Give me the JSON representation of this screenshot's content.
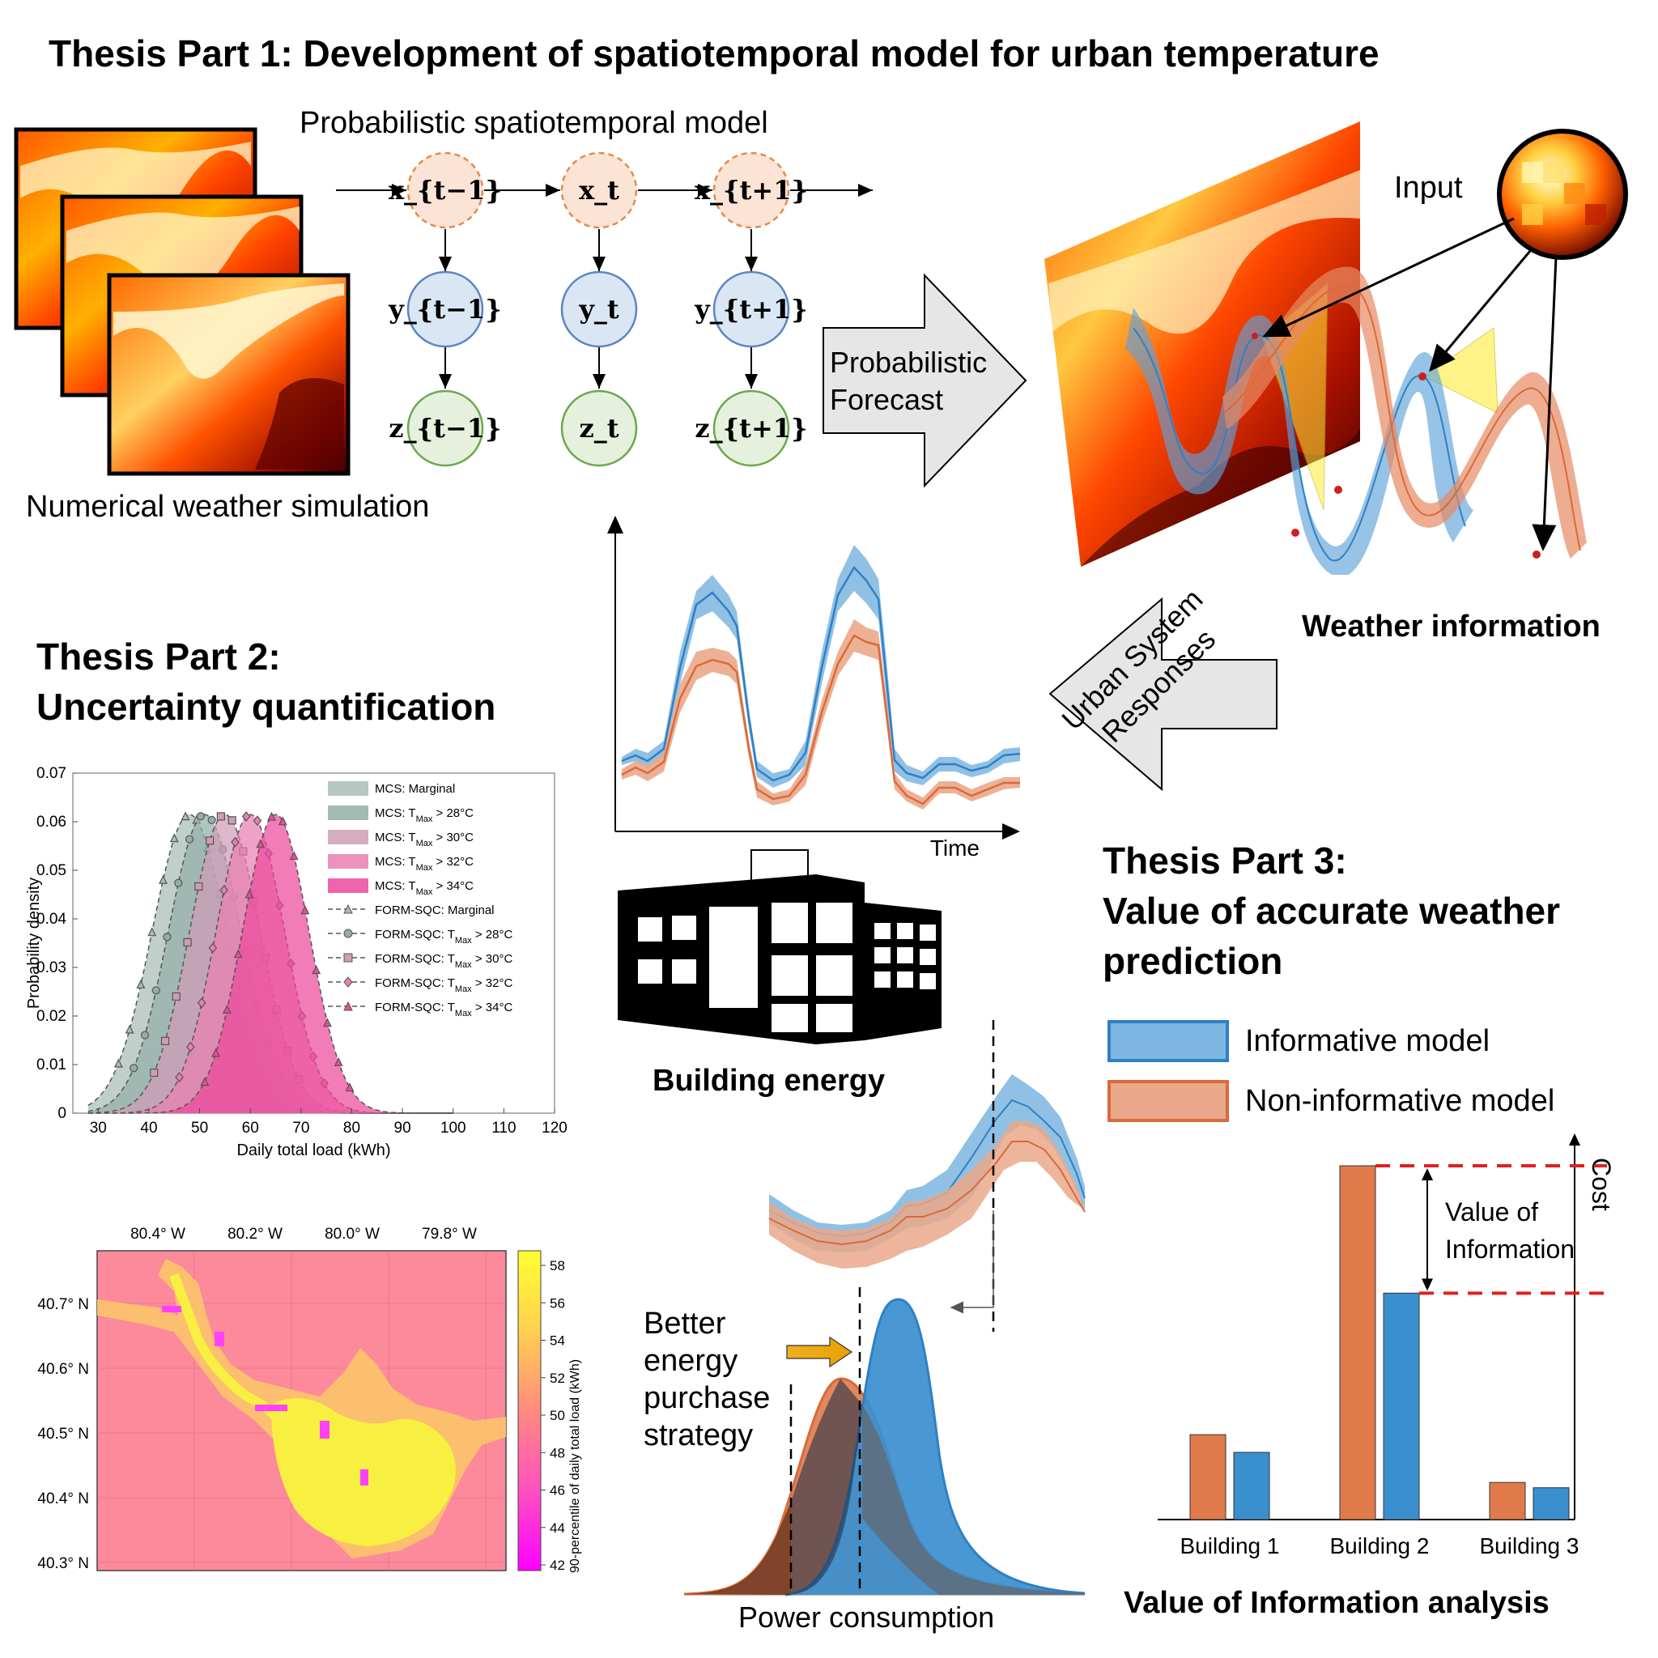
{
  "part1": {
    "title": "Thesis Part 1: Development of spatiotemporal model for urban temperature",
    "nws_label": "Numerical weather simulation",
    "model_label": "Probabilistic spatiotemporal model",
    "nodes": {
      "x": [
        "x_{t−1}",
        "x_t",
        "x_{t+1}"
      ],
      "y": [
        "y_{t−1}",
        "y_t",
        "y_{t+1}"
      ],
      "z": [
        "z_{t−1}",
        "z_t",
        "z_{t+1}"
      ]
    },
    "forecast_arrow": [
      "Probabilistic",
      "Forecast"
    ],
    "input_label": "Input",
    "weather_label": "Weather information",
    "responses_arrow": [
      "Urban System",
      "Responses"
    ]
  },
  "time_chart": {
    "xlabel": "Time"
  },
  "building_label": "Building energy",
  "part2": {
    "title_line1": "Thesis Part 2:",
    "title_line2": "Uncertainty quantification",
    "pdf_chart": {
      "type": "area",
      "xlabel": "Daily total load (kWh)",
      "ylabel": "Probability density",
      "xlim": [
        25,
        120
      ],
      "ylim": [
        0,
        0.07
      ],
      "xticks": [
        "30",
        "40",
        "50",
        "60",
        "70",
        "80",
        "90",
        "100",
        "110",
        "120"
      ],
      "yticks": [
        "0",
        "0.01",
        "0.02",
        "0.03",
        "0.04",
        "0.05",
        "0.06",
        "0.07"
      ],
      "series": [
        {
          "name": "MCS: Marginal",
          "mean": 48,
          "sd": 7.4,
          "color": "#a8bdb4"
        },
        {
          "name": "MCS: T_Max > 28°C",
          "mean": 51,
          "sd": 7.2,
          "color": "#93aea7"
        },
        {
          "name": "MCS: T_Max > 30°C",
          "mean": 55,
          "sd": 7.0,
          "color": "#cf9db5"
        },
        {
          "name": "MCS: T_Max > 32°C",
          "mean": 60,
          "sd": 6.8,
          "color": "#e97fb0"
        },
        {
          "name": "MCS: T_Max > 34°C",
          "mean": 65,
          "sd": 6.6,
          "color": "#ec4a9c"
        }
      ],
      "form_legend": [
        "FORM-SQC: Marginal",
        "FORM-SQC: T_Max > 28°C",
        "FORM-SQC: T_Max > 30°C",
        "FORM-SQC: T_Max > 32°C",
        "FORM-SQC: T_Max > 34°C"
      ]
    },
    "map": {
      "lon_ticks": [
        "80.4° W",
        "80.2° W",
        "80.0° W",
        "79.8° W"
      ],
      "lat_ticks": [
        "40.7° N",
        "40.6° N",
        "40.5° N",
        "40.4° N",
        "40.3° N"
      ],
      "colorbar_label": "90-percentile of daily total load (kWh)",
      "colorbar_ticks": [
        "58",
        "56",
        "54",
        "52",
        "50",
        "48",
        "46",
        "44",
        "42"
      ]
    }
  },
  "part3": {
    "title_line1": "Thesis Part 3:",
    "title_line2": "Value of accurate weather",
    "title_line3": "prediction",
    "legend": [
      {
        "label": "Informative model",
        "fill": "#7db6e0",
        "stroke": "#2f80c4"
      },
      {
        "label": "Non-informative model",
        "fill": "#eaa88a",
        "stroke": "#d96a3b"
      }
    ],
    "better_strategy": [
      "Better",
      "energy",
      "purchase",
      "strategy"
    ],
    "power_label": "Power consumption",
    "voi_chart": {
      "type": "bar",
      "categories": [
        "Building 1",
        "Building 2",
        "Building 3"
      ],
      "series": [
        {
          "name": "Non-informative model",
          "values": [
            0.24,
            1.0,
            0.105
          ],
          "color": "#e07a4a"
        },
        {
          "name": "Informative model",
          "values": [
            0.19,
            0.64,
            0.09
          ],
          "color": "#3a8fcf"
        }
      ],
      "ylabel": "Cost",
      "annotation": [
        "Value of",
        "Information"
      ],
      "title": "Value of Information analysis"
    }
  },
  "colors": {
    "blue": "#2f80c4",
    "orange": "#d96a3b",
    "node_x_fill": "#fbe4d6",
    "node_y_fill": "#dbe6f4",
    "node_z_fill": "#e5f1dc"
  }
}
